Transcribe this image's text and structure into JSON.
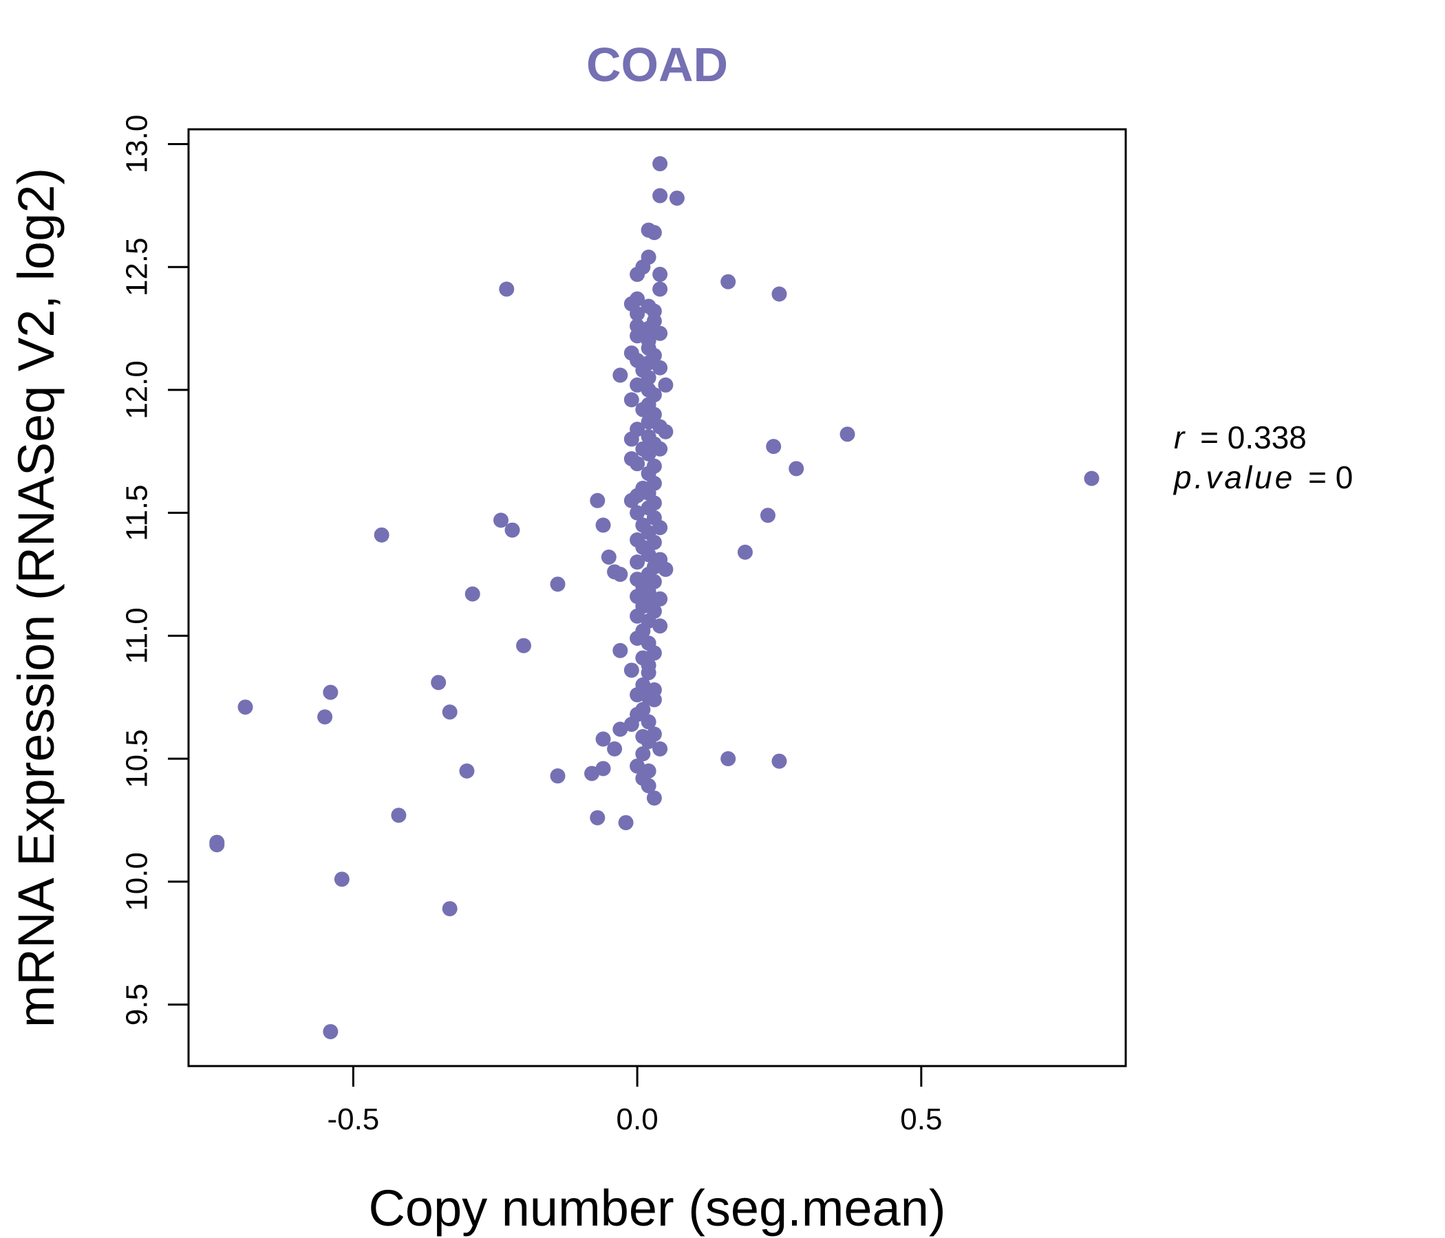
{
  "chart_data": {
    "type": "scatter",
    "title": "COAD",
    "xlabel": "Copy number (seg.mean)",
    "ylabel": "mRNA Expression (RNASeq V2, log2)",
    "xlim": [
      -0.79,
      0.86
    ],
    "ylim": [
      9.25,
      13.06
    ],
    "xticks": [
      -0.5,
      0.0,
      0.5
    ],
    "xtick_labels": [
      "-0.5",
      "0.0",
      "0.5"
    ],
    "yticks": [
      9.5,
      10.0,
      10.5,
      11.0,
      11.5,
      12.0,
      12.5,
      13.0
    ],
    "ytick_labels": [
      "9.5",
      "10.0",
      "10.5",
      "11.0",
      "11.5",
      "12.0",
      "12.5",
      "13.0"
    ],
    "grid": false,
    "color": "#7570b3",
    "stats": {
      "r_label": "r",
      "r_value": "0.338",
      "p_label": "p.value",
      "p_value": "0"
    },
    "points": [
      [
        0.04,
        12.92
      ],
      [
        0.04,
        12.79
      ],
      [
        0.07,
        12.78
      ],
      [
        0.02,
        12.65
      ],
      [
        0.03,
        12.64
      ],
      [
        0.02,
        12.54
      ],
      [
        0.01,
        12.5
      ],
      [
        0.0,
        12.47
      ],
      [
        0.04,
        12.47
      ],
      [
        0.16,
        12.44
      ],
      [
        -0.23,
        12.41
      ],
      [
        0.04,
        12.41
      ],
      [
        0.25,
        12.39
      ],
      [
        0.0,
        12.37
      ],
      [
        -0.01,
        12.35
      ],
      [
        0.02,
        12.34
      ],
      [
        0.03,
        12.32
      ],
      [
        0.0,
        12.31
      ],
      [
        0.03,
        12.28
      ],
      [
        0.0,
        12.26
      ],
      [
        0.02,
        12.25
      ],
      [
        0.04,
        12.23
      ],
      [
        0.0,
        12.22
      ],
      [
        0.02,
        12.2
      ],
      [
        0.02,
        12.17
      ],
      [
        -0.01,
        12.15
      ],
      [
        0.03,
        12.14
      ],
      [
        0.0,
        12.12
      ],
      [
        0.02,
        12.11
      ],
      [
        0.04,
        12.09
      ],
      [
        0.01,
        12.08
      ],
      [
        -0.03,
        12.06
      ],
      [
        0.02,
        12.05
      ],
      [
        0.0,
        12.02
      ],
      [
        0.05,
        12.02
      ],
      [
        0.02,
        12.0
      ],
      [
        0.03,
        11.98
      ],
      [
        -0.01,
        11.96
      ],
      [
        0.02,
        11.94
      ],
      [
        0.01,
        11.92
      ],
      [
        0.03,
        11.9
      ],
      [
        0.02,
        11.87
      ],
      [
        0.04,
        11.85
      ],
      [
        0.0,
        11.84
      ],
      [
        0.05,
        11.83
      ],
      [
        0.37,
        11.82
      ],
      [
        0.02,
        11.81
      ],
      [
        -0.01,
        11.8
      ],
      [
        0.03,
        11.78
      ],
      [
        0.24,
        11.77
      ],
      [
        0.01,
        11.76
      ],
      [
        0.04,
        11.76
      ],
      [
        0.02,
        11.74
      ],
      [
        -0.01,
        11.72
      ],
      [
        0.0,
        11.7
      ],
      [
        0.03,
        11.69
      ],
      [
        0.28,
        11.68
      ],
      [
        0.02,
        11.66
      ],
      [
        0.8,
        11.64
      ],
      [
        0.03,
        11.62
      ],
      [
        0.01,
        11.6
      ],
      [
        0.02,
        11.58
      ],
      [
        0.0,
        11.57
      ],
      [
        -0.01,
        11.55
      ],
      [
        -0.07,
        11.55
      ],
      [
        0.03,
        11.54
      ],
      [
        0.02,
        11.52
      ],
      [
        0.0,
        11.5
      ],
      [
        0.23,
        11.49
      ],
      [
        0.03,
        11.48
      ],
      [
        -0.24,
        11.47
      ],
      [
        -0.06,
        11.45
      ],
      [
        0.01,
        11.45
      ],
      [
        0.04,
        11.44
      ],
      [
        -0.22,
        11.43
      ],
      [
        0.02,
        11.42
      ],
      [
        -0.45,
        11.41
      ],
      [
        0.0,
        11.39
      ],
      [
        0.03,
        11.38
      ],
      [
        0.01,
        11.36
      ],
      [
        0.19,
        11.34
      ],
      [
        0.02,
        11.33
      ],
      [
        -0.05,
        11.32
      ],
      [
        0.04,
        11.31
      ],
      [
        0.0,
        11.3
      ],
      [
        0.03,
        11.28
      ],
      [
        0.05,
        11.27
      ],
      [
        -0.04,
        11.26
      ],
      [
        -0.03,
        11.25
      ],
      [
        0.02,
        11.25
      ],
      [
        0.0,
        11.23
      ],
      [
        0.03,
        11.22
      ],
      [
        -0.14,
        11.21
      ],
      [
        0.01,
        11.2
      ],
      [
        0.02,
        11.18
      ],
      [
        -0.29,
        11.17
      ],
      [
        0.0,
        11.16
      ],
      [
        0.04,
        11.15
      ],
      [
        0.02,
        11.13
      ],
      [
        0.01,
        11.12
      ],
      [
        0.03,
        11.1
      ],
      [
        0.0,
        11.08
      ],
      [
        0.02,
        11.06
      ],
      [
        0.04,
        11.04
      ],
      [
        0.01,
        11.02
      ],
      [
        0.0,
        10.99
      ],
      [
        0.02,
        10.97
      ],
      [
        -0.2,
        10.96
      ],
      [
        -0.03,
        10.94
      ],
      [
        0.03,
        10.93
      ],
      [
        0.01,
        10.91
      ],
      [
        0.02,
        10.88
      ],
      [
        -0.01,
        10.86
      ],
      [
        0.02,
        10.85
      ],
      [
        -0.35,
        10.81
      ],
      [
        0.01,
        10.8
      ],
      [
        0.03,
        10.78
      ],
      [
        -0.54,
        10.77
      ],
      [
        0.0,
        10.76
      ],
      [
        0.02,
        10.75
      ],
      [
        0.03,
        10.74
      ],
      [
        -0.69,
        10.71
      ],
      [
        0.01,
        10.7
      ],
      [
        -0.33,
        10.69
      ],
      [
        0.0,
        10.68
      ],
      [
        -0.55,
        10.67
      ],
      [
        0.02,
        10.65
      ],
      [
        -0.01,
        10.64
      ],
      [
        -0.03,
        10.62
      ],
      [
        0.03,
        10.6
      ],
      [
        0.01,
        10.59
      ],
      [
        -0.06,
        10.58
      ],
      [
        0.02,
        10.57
      ],
      [
        0.04,
        10.54
      ],
      [
        -0.04,
        10.54
      ],
      [
        0.01,
        10.52
      ],
      [
        0.16,
        10.5
      ],
      [
        0.25,
        10.49
      ],
      [
        0.0,
        10.47
      ],
      [
        -0.06,
        10.46
      ],
      [
        -0.3,
        10.45
      ],
      [
        0.02,
        10.45
      ],
      [
        -0.08,
        10.44
      ],
      [
        -0.14,
        10.43
      ],
      [
        0.01,
        10.42
      ],
      [
        0.02,
        10.39
      ],
      [
        0.03,
        10.34
      ],
      [
        -0.42,
        10.27
      ],
      [
        -0.07,
        10.26
      ],
      [
        -0.02,
        10.24
      ],
      [
        -0.74,
        10.16
      ],
      [
        -0.74,
        10.15
      ],
      [
        -0.52,
        10.01
      ],
      [
        -0.33,
        9.89
      ],
      [
        -0.54,
        9.39
      ]
    ]
  }
}
